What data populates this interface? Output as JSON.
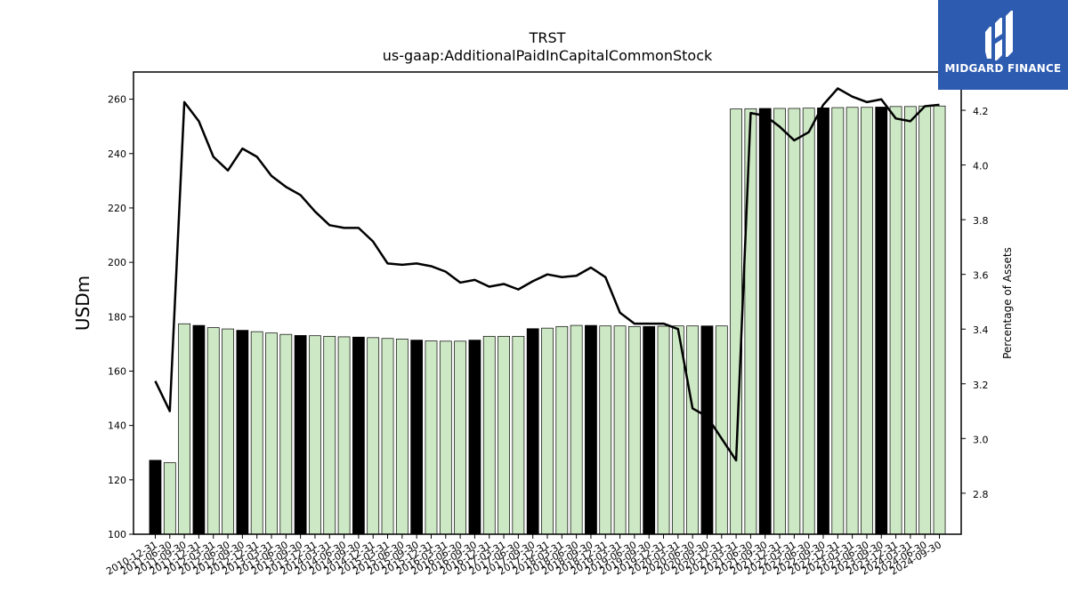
{
  "brand": {
    "name": "MIDGARD FINANCE",
    "background_color": "#2d5bb0",
    "icon": "midgard-finance-logo-icon"
  },
  "chart_data": {
    "type": "bar",
    "title": "TRST",
    "subtitle": "us-gaap:AdditionalPaidInCapitalCommonStock",
    "ylabel": "USDm",
    "y2label": "Percentage of Assets",
    "ylim": [
      100,
      270
    ],
    "y2lim": [
      2.65,
      4.34
    ],
    "yticks": [
      100,
      120,
      140,
      160,
      180,
      200,
      220,
      240,
      260
    ],
    "y2ticks": [
      2.8,
      3.0,
      3.2,
      3.4,
      3.6,
      3.8,
      4.0,
      4.2
    ],
    "colors": {
      "annual_bar": "#000000",
      "quarter_bar": "#cde8c4",
      "line": "#000000"
    },
    "categories": [
      "2010-12-31",
      "2011-06-30",
      "2011-09-30",
      "2011-12-31",
      "2012-03-31",
      "2012-06-30",
      "2012-09-30",
      "2012-12-31",
      "2013-03-31",
      "2013-06-30",
      "2013-09-30",
      "2013-12-31",
      "2014-03-31",
      "2014-06-30",
      "2014-09-30",
      "2014-12-31",
      "2015-03-31",
      "2015-06-30",
      "2015-09-30",
      "2015-12-31",
      "2016-03-31",
      "2016-06-30",
      "2016-09-30",
      "2016-12-31",
      "2017-03-31",
      "2017-06-30",
      "2017-09-30",
      "2017-12-31",
      "2018-03-31",
      "2018-06-30",
      "2018-09-30",
      "2018-12-31",
      "2019-03-31",
      "2019-06-30",
      "2019-09-30",
      "2019-12-31",
      "2020-03-31",
      "2020-06-30",
      "2020-09-30",
      "2020-12-31",
      "2021-03-31",
      "2021-06-30",
      "2021-09-30",
      "2021-12-31",
      "2022-03-31",
      "2022-06-30",
      "2022-09-30",
      "2022-12-31",
      "2023-03-31",
      "2023-06-30",
      "2023-09-30",
      "2023-12-31",
      "2024-03-31",
      "2024-06-30",
      "2024-09-30"
    ],
    "series": [
      {
        "kind": "bar",
        "values": [
          127.2,
          126.3,
          177.4,
          176.8,
          176.0,
          175.5,
          175.0,
          174.5,
          174.0,
          173.5,
          173.1,
          173.0,
          172.8,
          172.6,
          172.5,
          172.3,
          172.0,
          171.8,
          171.4,
          171.1,
          171.0,
          171.0,
          171.4,
          172.8,
          172.8,
          172.8,
          175.6,
          175.8,
          176.4,
          176.8,
          176.8,
          176.6,
          176.6,
          176.4,
          176.4,
          176.5,
          176.6,
          176.6,
          176.6,
          176.6,
          256.4,
          256.5,
          256.6,
          256.6,
          256.6,
          256.7,
          256.8,
          256.9,
          257.0,
          257.0,
          257.1,
          257.3,
          257.3,
          257.5,
          257.5
        ],
        "annual": [
          true,
          false,
          false,
          true,
          false,
          false,
          true,
          false,
          false,
          false,
          true,
          false,
          false,
          false,
          true,
          false,
          false,
          false,
          true,
          false,
          false,
          false,
          true,
          false,
          false,
          false,
          true,
          false,
          false,
          false,
          true,
          false,
          false,
          false,
          true,
          false,
          false,
          false,
          true,
          false,
          false,
          false,
          true,
          false,
          false,
          false,
          true,
          false,
          false,
          false,
          true,
          false,
          false,
          false,
          false
        ]
      },
      {
        "kind": "line",
        "axis": "right",
        "values": [
          3.21,
          3.1,
          4.23,
          4.16,
          4.03,
          3.98,
          4.06,
          4.03,
          3.96,
          3.92,
          3.89,
          3.83,
          3.78,
          3.77,
          3.77,
          3.72,
          3.64,
          3.635,
          3.64,
          3.63,
          3.61,
          3.57,
          3.58,
          3.555,
          3.565,
          3.545,
          3.575,
          3.6,
          3.59,
          3.595,
          3.625,
          3.59,
          3.46,
          3.42,
          3.42,
          3.42,
          3.4,
          3.11,
          3.08,
          3.0,
          2.92,
          4.19,
          4.18,
          4.14,
          4.09,
          4.12,
          4.22,
          4.28,
          4.25,
          4.23,
          4.24,
          4.17,
          4.16,
          4.215,
          4.22
        ]
      }
    ]
  }
}
